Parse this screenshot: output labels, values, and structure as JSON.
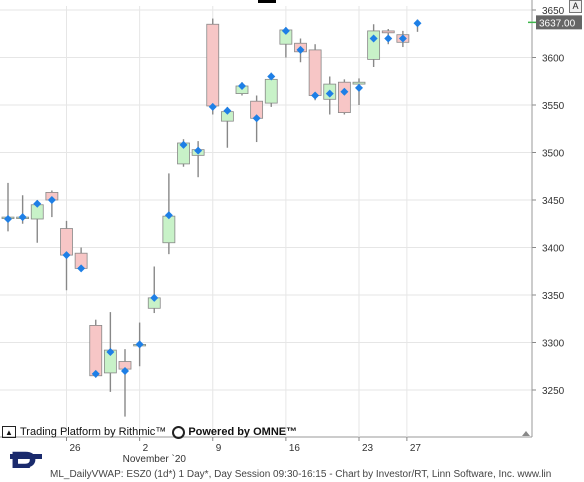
{
  "chart_data": {
    "type": "candlestick",
    "symbol": "ESZ0 (1d*)",
    "y_ticks": [
      3250,
      3300,
      3350,
      3400,
      3450,
      3500,
      3550,
      3600,
      3650
    ],
    "ylim": [
      3200,
      3660
    ],
    "last_price": "3637.00",
    "x_labels": [
      {
        "index": 4,
        "label": "26"
      },
      {
        "index": 9,
        "label": "2"
      },
      {
        "index": 14,
        "label": "9"
      },
      {
        "index": 19,
        "label": "16"
      },
      {
        "index": 24,
        "label": "23"
      },
      {
        "index": 27,
        "label": "27"
      }
    ],
    "month_label": {
      "index": 9,
      "label": "November `20"
    },
    "candles": [
      {
        "o": 3432,
        "h": 3468,
        "l": 3417,
        "c": 3432,
        "vwap": 3430
      },
      {
        "o": 3432,
        "h": 3455,
        "l": 3425,
        "c": 3432,
        "vwap": 3432
      },
      {
        "o": 3430,
        "h": 3450,
        "l": 3405,
        "c": 3445,
        "vwap": 3446
      },
      {
        "o": 3458,
        "h": 3460,
        "l": 3432,
        "c": 3450,
        "vwap": 3450
      },
      {
        "o": 3420,
        "h": 3428,
        "l": 3355,
        "c": 3392,
        "vwap": 3392
      },
      {
        "o": 3394,
        "h": 3400,
        "l": 3376,
        "c": 3378,
        "vwap": 3378
      },
      {
        "o": 3318,
        "h": 3324,
        "l": 3263,
        "c": 3265,
        "vwap": 3267
      },
      {
        "o": 3268,
        "h": 3332,
        "l": 3248,
        "c": 3292,
        "vwap": 3290
      },
      {
        "o": 3280,
        "h": 3293,
        "l": 3222,
        "c": 3272,
        "vwap": 3270
      },
      {
        "o": 3298,
        "h": 3321,
        "l": 3275,
        "c": 3298,
        "vwap": 3298
      },
      {
        "o": 3336,
        "h": 3380,
        "l": 3331,
        "c": 3347,
        "vwap": 3347
      },
      {
        "o": 3405,
        "h": 3478,
        "l": 3393,
        "c": 3433,
        "vwap": 3434
      },
      {
        "o": 3488,
        "h": 3514,
        "l": 3485,
        "c": 3510,
        "vwap": 3508
      },
      {
        "o": 3497,
        "h": 3512,
        "l": 3474,
        "c": 3503,
        "vwap": 3502
      },
      {
        "o": 3635,
        "h": 3641,
        "l": 3540,
        "c": 3549,
        "vwap": 3548
      },
      {
        "o": 3533,
        "h": 3548,
        "l": 3505,
        "c": 3543,
        "vwap": 3544
      },
      {
        "o": 3562,
        "h": 3574,
        "l": 3560,
        "c": 3570,
        "vwap": 3570
      },
      {
        "o": 3554,
        "h": 3560,
        "l": 3511,
        "c": 3536,
        "vwap": 3536
      },
      {
        "o": 3552,
        "h": 3584,
        "l": 3548,
        "c": 3577,
        "vwap": 3580
      },
      {
        "o": 3614,
        "h": 3632,
        "l": 3600,
        "c": 3629,
        "vwap": 3628
      },
      {
        "o": 3615,
        "h": 3620,
        "l": 3595,
        "c": 3606,
        "vwap": 3608
      },
      {
        "o": 3608,
        "h": 3614,
        "l": 3555,
        "c": 3560,
        "vwap": 3560
      },
      {
        "o": 3556,
        "h": 3580,
        "l": 3540,
        "c": 3572,
        "vwap": 3562
      },
      {
        "o": 3574,
        "h": 3577,
        "l": 3540,
        "c": 3542,
        "vwap": 3564
      },
      {
        "o": 3572,
        "h": 3578,
        "l": 3550,
        "c": 3574,
        "vwap": 3568
      },
      {
        "o": 3598,
        "h": 3635,
        "l": 3590,
        "c": 3628,
        "vwap": 3620
      },
      {
        "o": 3628,
        "h": 3630,
        "l": 3614,
        "c": 3626,
        "vwap": 3620
      },
      {
        "o": 3624,
        "h": 3628,
        "l": 3611,
        "c": 3616,
        "vwap": 3620
      },
      {
        "o": null,
        "h": 3640,
        "l": 3627,
        "c": null,
        "vwap": 3636
      }
    ],
    "colors": {
      "up_fill": "#c8f2c8",
      "down_fill": "#f7c6c6",
      "border": "#888888",
      "vwap": "#1e7fe6",
      "grid": "#e6e6e6",
      "last_price_bg": "#666666",
      "last_price_fg": "#ffffff",
      "last_price_line": "#3cb54a"
    }
  },
  "toolbar": {
    "auto_label": "A"
  },
  "branding": {
    "rithmic_text": "Trading Platform by Rithmic™",
    "omne_text": "Powered by OMNE™"
  },
  "footer": {
    "caption": "ML_DailyVWAP: ESZ0 (1d*) 1 Day*, Day Session 09:30-16:15 - Chart by Investor/RT, Linn Software, Inc. www.lin"
  }
}
